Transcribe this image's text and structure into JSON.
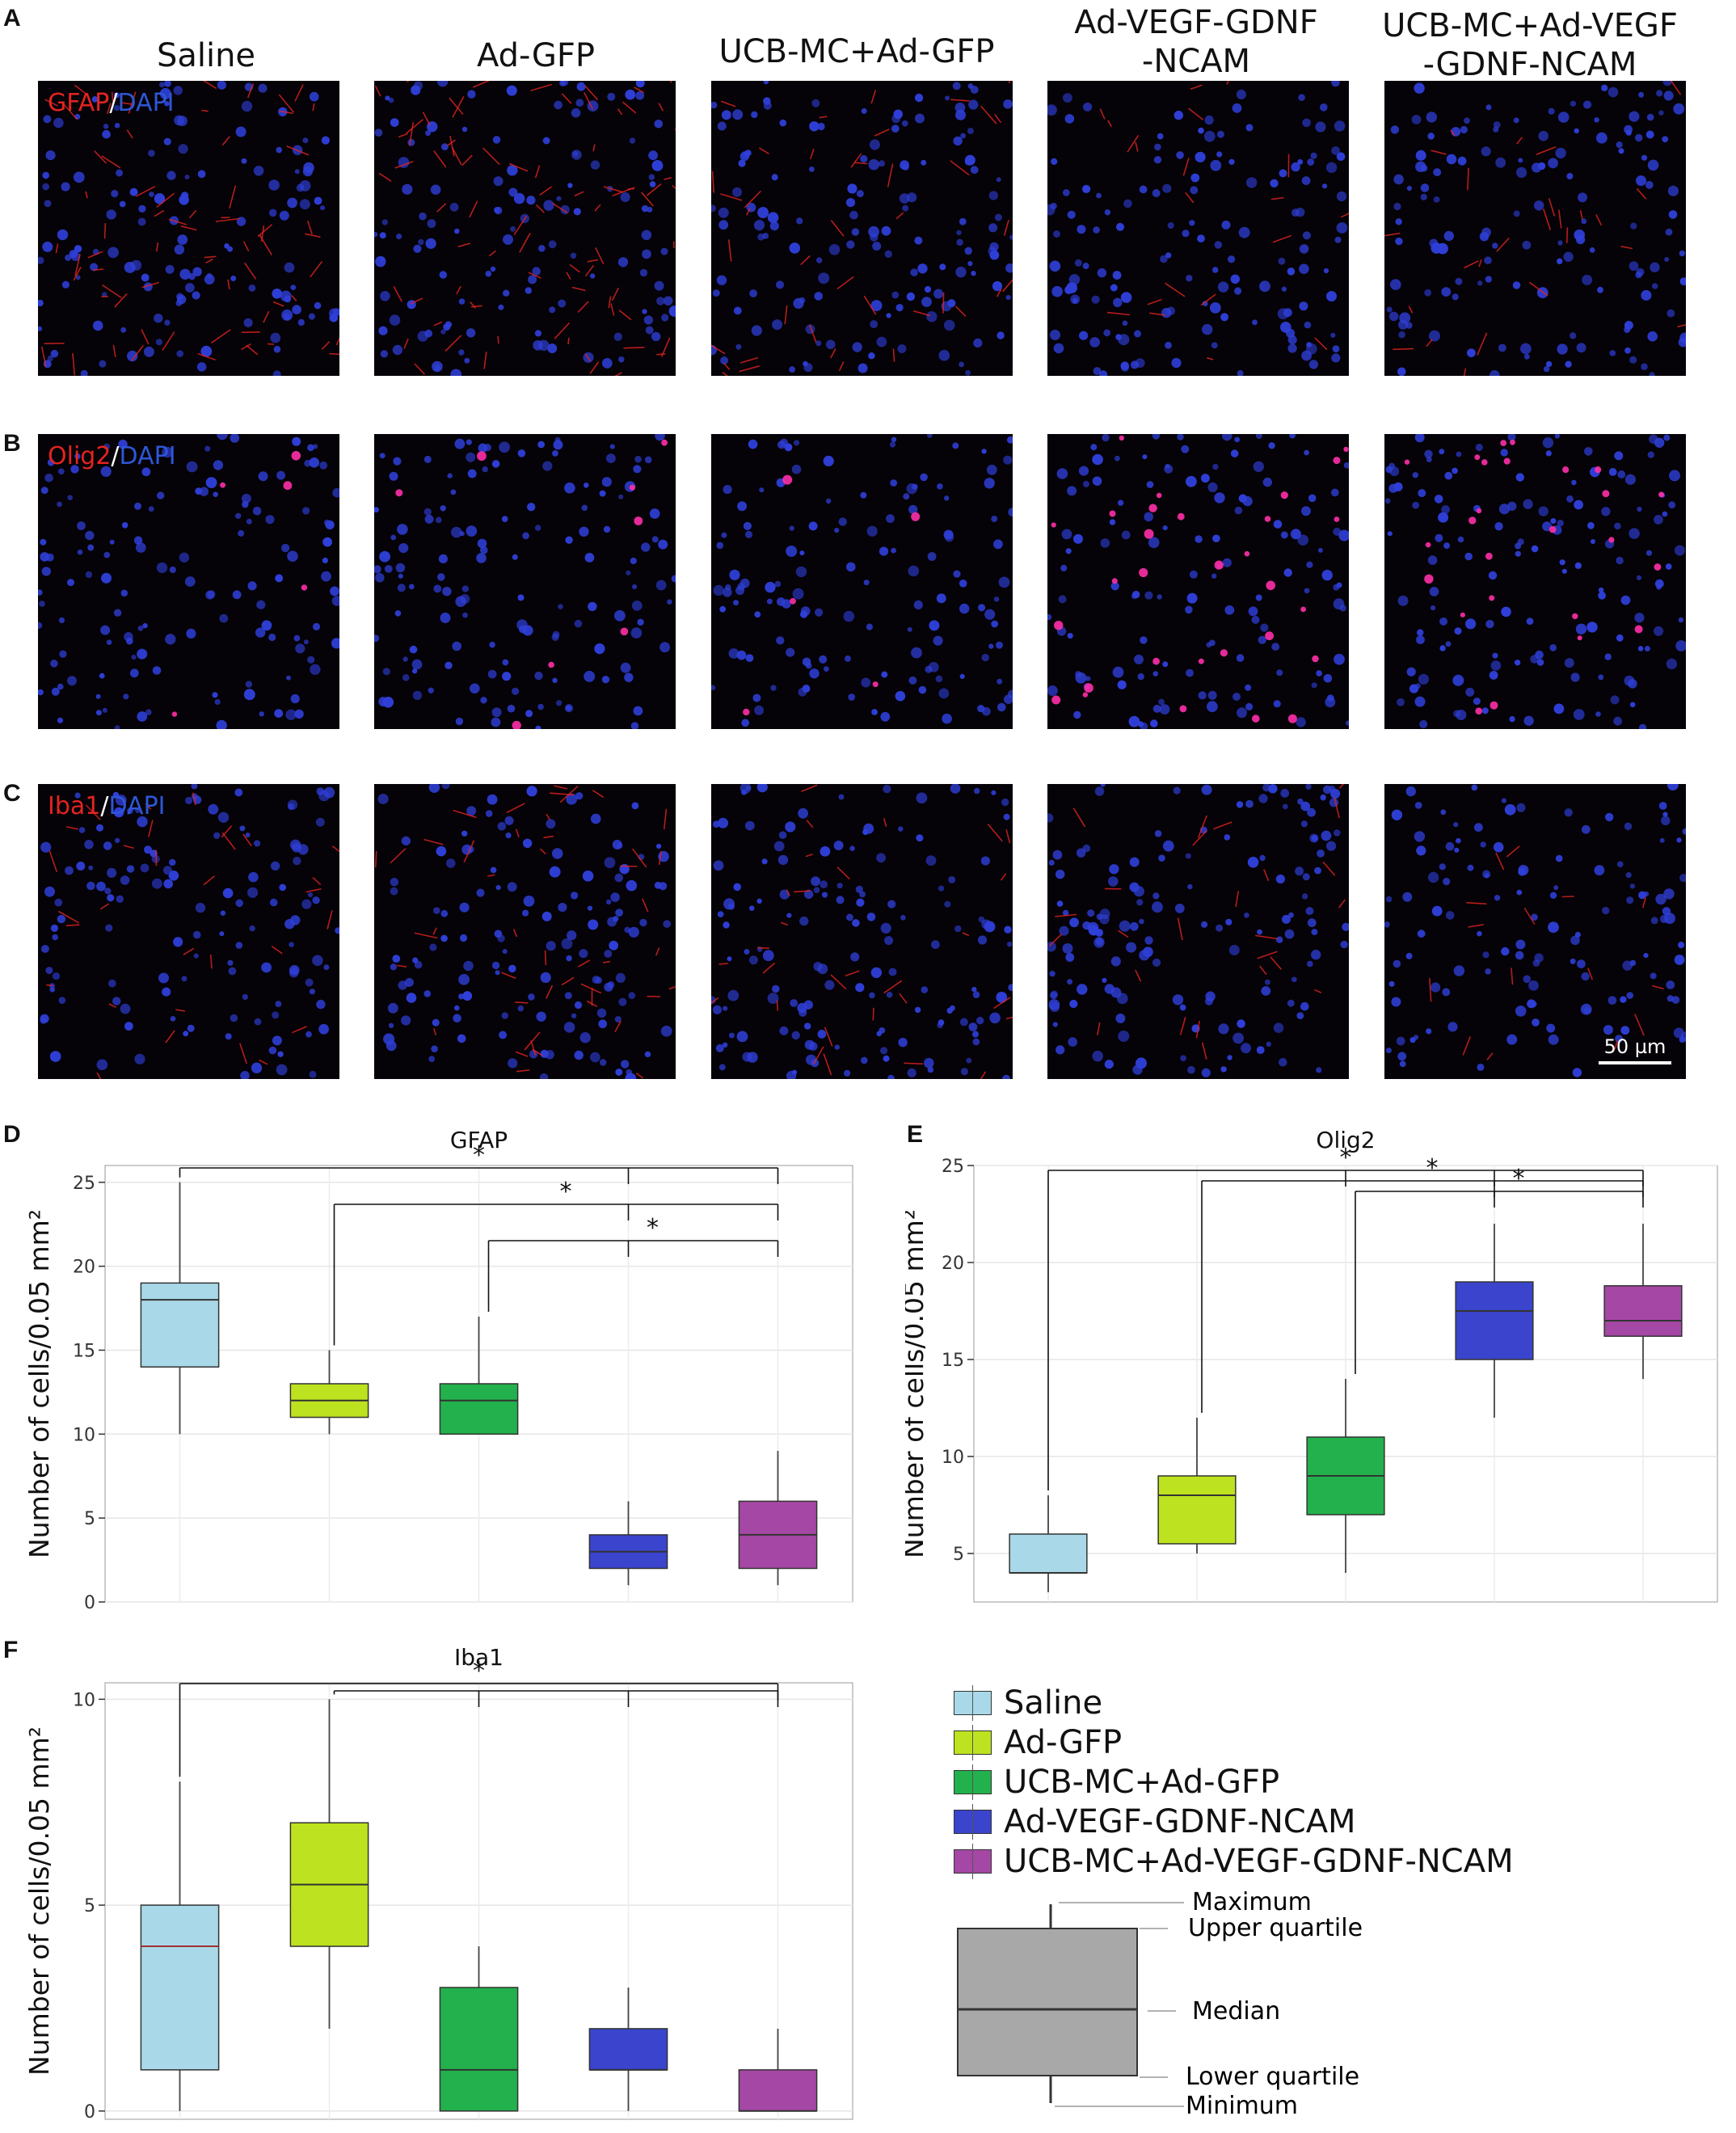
{
  "panel_letters": {
    "a": "A",
    "b": "B",
    "c": "C",
    "d": "D",
    "e": "E",
    "f": "F"
  },
  "groups": [
    "Saline",
    "Ad-GFP",
    "UCB-MC+Ad-GFP",
    "Ad-VEGF-GDNF-NCAM",
    "UCB-MC+Ad-VEGF-GDNF-NCAM"
  ],
  "column_headers": [
    {
      "line1": "Saline",
      "line2": ""
    },
    {
      "line1": "Ad-GFP",
      "line2": ""
    },
    {
      "line1": "UCB-MC+Ad-GFP",
      "line2": ""
    },
    {
      "line1": "Ad-VEGF-GDNF",
      "line2": "-NCAM"
    },
    {
      "line1": "UCB-MC+Ad-VEGF",
      "line2": "-GDNF-NCAM"
    }
  ],
  "stains": {
    "row_a": {
      "marker": "GFAP",
      "sep": "/",
      "dapi": "DAPI"
    },
    "row_b": {
      "marker": "Olig2",
      "sep": "/",
      "dapi": "DAPI"
    },
    "row_c": {
      "marker": "Iba1",
      "sep": "/",
      "dapi": "DAPI"
    }
  },
  "scale_bar": "50  µm",
  "colors": {
    "saline": "#a9d9e8",
    "ad_gfp": "#bde21f",
    "ucb_gfp": "#22b14c",
    "ad_vegf": "#3a44cc",
    "ucb_vegf": "#a547a5",
    "stain_red": "#e3241f",
    "stain_blue": "#2e57d6",
    "key_box": "#a8a8a8"
  },
  "chart_data": [
    {
      "type": "box",
      "title": "GFAP",
      "ylabel": "Number of cells/0.05 mm²",
      "ylim": [
        0,
        26
      ],
      "yticks": [
        0,
        5,
        10,
        15,
        20,
        25
      ],
      "categories": [
        "Saline",
        "Ad-GFP",
        "UCB-MC+Ad-GFP",
        "Ad-VEGF-GDNF-NCAM",
        "UCB-MC+Ad-VEGF-GDNF-NCAM"
      ],
      "boxes": [
        {
          "min": 10,
          "q1": 14,
          "median": 18,
          "q3": 19,
          "max": 25
        },
        {
          "min": 10,
          "q1": 11,
          "median": 12,
          "q3": 13,
          "max": 15
        },
        {
          "min": 10,
          "q1": 10,
          "median": 12,
          "q3": 13,
          "max": 17
        },
        {
          "min": 1,
          "q1": 2,
          "median": 3,
          "q3": 4,
          "max": 6
        },
        {
          "min": 1,
          "q1": 2,
          "median": 4,
          "q3": 6,
          "max": 9
        }
      ],
      "significance": [
        {
          "from": 1,
          "to": [
            4,
            5
          ],
          "label": "*"
        },
        {
          "from": 2,
          "to": [
            4,
            5
          ],
          "label": "*"
        },
        {
          "from": 3,
          "to": [
            4,
            5
          ],
          "label": "*"
        }
      ]
    },
    {
      "type": "box",
      "title": "Olig2",
      "ylabel": "Number of cells/0.05 mm²",
      "ylim": [
        2.5,
        25
      ],
      "yticks": [
        5,
        10,
        15,
        20,
        25
      ],
      "categories": [
        "Saline",
        "Ad-GFP",
        "UCB-MC+Ad-GFP",
        "Ad-VEGF-GDNF-NCAM",
        "UCB-MC+Ad-VEGF-GDNF-NCAM"
      ],
      "boxes": [
        {
          "min": 3,
          "q1": 4,
          "median": 4,
          "q3": 6,
          "max": 8
        },
        {
          "min": 5,
          "q1": 5.5,
          "median": 8,
          "q3": 9,
          "max": 12
        },
        {
          "min": 4,
          "q1": 7,
          "median": 9,
          "q3": 11,
          "max": 14
        },
        {
          "min": 12,
          "q1": 15,
          "median": 17.5,
          "q3": 19,
          "max": 22
        },
        {
          "min": 14,
          "q1": 16.2,
          "median": 17,
          "q3": 18.8,
          "max": 22
        }
      ],
      "significance": [
        {
          "from": 1,
          "to": [
            3,
            4,
            5
          ],
          "label": "*"
        },
        {
          "from": 2,
          "to": [
            4,
            5
          ],
          "label": "*"
        },
        {
          "from": 3,
          "to": [
            4,
            5
          ],
          "label": "*"
        }
      ]
    },
    {
      "type": "box",
      "title": "Iba1",
      "ylabel": "Number of cells/0.05 mm²",
      "ylim": [
        -0.2,
        10.4
      ],
      "yticks": [
        0,
        5,
        10
      ],
      "categories": [
        "Saline",
        "Ad-GFP",
        "UCB-MC+Ad-GFP",
        "Ad-VEGF-GDNF-NCAM",
        "UCB-MC+Ad-VEGF-GDNF-NCAM"
      ],
      "boxes": [
        {
          "min": 0,
          "q1": 1,
          "median": 4,
          "q3": 5,
          "max": 8
        },
        {
          "min": 2,
          "q1": 4,
          "median": 5.5,
          "q3": 7,
          "max": 10
        },
        {
          "min": 0,
          "q1": 0,
          "median": 1,
          "q3": 3,
          "max": 4
        },
        {
          "min": 0,
          "q1": 1,
          "median": 1,
          "q3": 2,
          "max": 3
        },
        {
          "min": 0,
          "q1": 0,
          "median": 0,
          "q3": 1,
          "max": 2
        }
      ],
      "significance": [
        {
          "from": 1,
          "to": [
            5
          ],
          "label": "*"
        },
        {
          "from": 2,
          "to": [
            3,
            4,
            5
          ],
          "label": ""
        }
      ]
    }
  ],
  "box_key": {
    "maximum": "Maximum",
    "upper_quartile": "Upper quartile",
    "median": "Median",
    "lower_quartile": "Lower quartile",
    "minimum": "Minimum"
  }
}
